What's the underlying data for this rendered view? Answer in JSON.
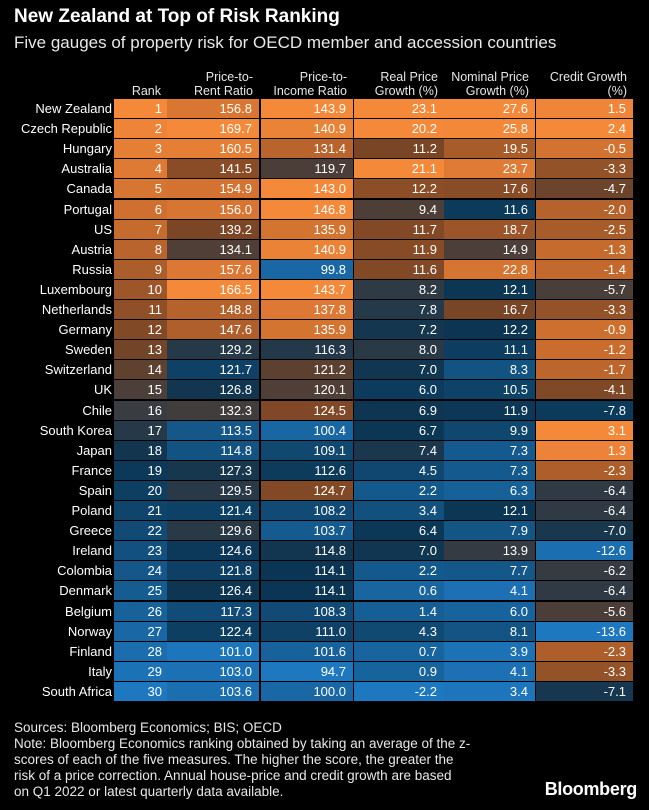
{
  "title": "New Zealand at Top of Risk Ranking",
  "subtitle": "Five gauges of property risk for OECD member and accession countries",
  "footer": {
    "sources": "Sources: Bloomberg Economics; BIS; OECD",
    "note_lines": [
      "Note: Bloomberg Economics ranking obtained by taking an average of the z-",
      "scores of each of the five measures. The higher the score, the greater the",
      "risk of a price correction. Annual house-price and credit growth are based",
      "on Q1 2022 or latest quarterly data available."
    ]
  },
  "brand": "Bloomberg",
  "colors": {
    "background": "#000000",
    "orange_high": "#f5893a",
    "orange_mid": "#c96c2e",
    "brown": "#7a4525",
    "dark_blue": "#0b3553",
    "blue_mid": "#14588a",
    "blue_high": "#1e78c0"
  },
  "chart_data": {
    "type": "table",
    "title": "New Zealand at Top of Risk Ranking",
    "subtitle": "Five gauges of property risk for OECD member and accession countries",
    "columns": [
      "Rank",
      "Price-to-\nRent Ratio",
      "Price-to-\nIncome Ratio",
      "Real Price\nGrowth (%)",
      "Nominal Price\nGrowth (%)",
      "Credit Growth\n(%)"
    ],
    "rows": [
      {
        "country": "New Zealand",
        "rank": 1,
        "price_to_rent": "156.8",
        "price_to_income": "143.9",
        "real_price_growth": "23.1",
        "nominal_price_growth": "27.6",
        "credit_growth": "1.5"
      },
      {
        "country": "Czech Republic",
        "rank": 2,
        "price_to_rent": "169.7",
        "price_to_income": "140.9",
        "real_price_growth": "20.2",
        "nominal_price_growth": "25.8",
        "credit_growth": "2.4"
      },
      {
        "country": "Hungary",
        "rank": 3,
        "price_to_rent": "160.5",
        "price_to_income": "131.4",
        "real_price_growth": "11.2",
        "nominal_price_growth": "19.5",
        "credit_growth": "-0.5"
      },
      {
        "country": "Australia",
        "rank": 4,
        "price_to_rent": "141.5",
        "price_to_income": "119.7",
        "real_price_growth": "21.1",
        "nominal_price_growth": "23.7",
        "credit_growth": "-3.3"
      },
      {
        "country": "Canada",
        "rank": 5,
        "price_to_rent": "154.9",
        "price_to_income": "143.0",
        "real_price_growth": "12.2",
        "nominal_price_growth": "17.6",
        "credit_growth": "-4.7"
      },
      {
        "country": "Portugal",
        "rank": 6,
        "price_to_rent": "156.0",
        "price_to_income": "146.8",
        "real_price_growth": "9.4",
        "nominal_price_growth": "11.6",
        "credit_growth": "-2.0"
      },
      {
        "country": "US",
        "rank": 7,
        "price_to_rent": "139.2",
        "price_to_income": "135.9",
        "real_price_growth": "11.7",
        "nominal_price_growth": "18.7",
        "credit_growth": "-2.5"
      },
      {
        "country": "Austria",
        "rank": 8,
        "price_to_rent": "134.1",
        "price_to_income": "140.9",
        "real_price_growth": "11.9",
        "nominal_price_growth": "14.9",
        "credit_growth": "-1.3"
      },
      {
        "country": "Russia",
        "rank": 9,
        "price_to_rent": "157.6",
        "price_to_income": "99.8",
        "real_price_growth": "11.6",
        "nominal_price_growth": "22.8",
        "credit_growth": "-1.4"
      },
      {
        "country": "Luxembourg",
        "rank": 10,
        "price_to_rent": "166.5",
        "price_to_income": "143.7",
        "real_price_growth": "8.2",
        "nominal_price_growth": "12.1",
        "credit_growth": "-5.7"
      },
      {
        "country": "Netherlands",
        "rank": 11,
        "price_to_rent": "148.8",
        "price_to_income": "137.8",
        "real_price_growth": "7.8",
        "nominal_price_growth": "16.7",
        "credit_growth": "-3.3"
      },
      {
        "country": "Germany",
        "rank": 12,
        "price_to_rent": "147.6",
        "price_to_income": "135.9",
        "real_price_growth": "7.2",
        "nominal_price_growth": "12.2",
        "credit_growth": "-0.9"
      },
      {
        "country": "Sweden",
        "rank": 13,
        "price_to_rent": "129.2",
        "price_to_income": "116.3",
        "real_price_growth": "8.0",
        "nominal_price_growth": "11.1",
        "credit_growth": "-1.2"
      },
      {
        "country": "Switzerland",
        "rank": 14,
        "price_to_rent": "121.7",
        "price_to_income": "121.2",
        "real_price_growth": "7.0",
        "nominal_price_growth": "8.3",
        "credit_growth": "-1.7"
      },
      {
        "country": "UK",
        "rank": 15,
        "price_to_rent": "126.8",
        "price_to_income": "120.1",
        "real_price_growth": "6.0",
        "nominal_price_growth": "10.5",
        "credit_growth": "-4.1"
      },
      {
        "country": "Chile",
        "rank": 16,
        "price_to_rent": "132.3",
        "price_to_income": "124.5",
        "real_price_growth": "6.9",
        "nominal_price_growth": "11.9",
        "credit_growth": "-7.8"
      },
      {
        "country": "South Korea",
        "rank": 17,
        "price_to_rent": "113.5",
        "price_to_income": "100.4",
        "real_price_growth": "6.7",
        "nominal_price_growth": "9.9",
        "credit_growth": "3.1"
      },
      {
        "country": "Japan",
        "rank": 18,
        "price_to_rent": "114.8",
        "price_to_income": "109.1",
        "real_price_growth": "7.4",
        "nominal_price_growth": "7.3",
        "credit_growth": "1.3"
      },
      {
        "country": "France",
        "rank": 19,
        "price_to_rent": "127.3",
        "price_to_income": "112.6",
        "real_price_growth": "4.5",
        "nominal_price_growth": "7.3",
        "credit_growth": "-2.3"
      },
      {
        "country": "Spain",
        "rank": 20,
        "price_to_rent": "129.5",
        "price_to_income": "124.7",
        "real_price_growth": "2.2",
        "nominal_price_growth": "6.3",
        "credit_growth": "-6.4"
      },
      {
        "country": "Poland",
        "rank": 21,
        "price_to_rent": "121.4",
        "price_to_income": "108.2",
        "real_price_growth": "3.4",
        "nominal_price_growth": "12.1",
        "credit_growth": "-6.4"
      },
      {
        "country": "Greece",
        "rank": 22,
        "price_to_rent": "129.6",
        "price_to_income": "103.7",
        "real_price_growth": "6.4",
        "nominal_price_growth": "7.9",
        "credit_growth": "-7.0"
      },
      {
        "country": "Ireland",
        "rank": 23,
        "price_to_rent": "124.6",
        "price_to_income": "114.8",
        "real_price_growth": "7.0",
        "nominal_price_growth": "13.9",
        "credit_growth": "-12.6"
      },
      {
        "country": "Colombia",
        "rank": 24,
        "price_to_rent": "121.8",
        "price_to_income": "114.1",
        "real_price_growth": "2.2",
        "nominal_price_growth": "7.7",
        "credit_growth": "-6.2"
      },
      {
        "country": "Denmark",
        "rank": 25,
        "price_to_rent": "126.4",
        "price_to_income": "114.1",
        "real_price_growth": "0.6",
        "nominal_price_growth": "4.1",
        "credit_growth": "-6.4"
      },
      {
        "country": "Belgium",
        "rank": 26,
        "price_to_rent": "117.3",
        "price_to_income": "108.3",
        "real_price_growth": "1.4",
        "nominal_price_growth": "6.0",
        "credit_growth": "-5.6"
      },
      {
        "country": "Norway",
        "rank": 27,
        "price_to_rent": "122.4",
        "price_to_income": "111.0",
        "real_price_growth": "4.3",
        "nominal_price_growth": "8.1",
        "credit_growth": "-13.6"
      },
      {
        "country": "Finland",
        "rank": 28,
        "price_to_rent": "101.0",
        "price_to_income": "101.6",
        "real_price_growth": "0.7",
        "nominal_price_growth": "3.9",
        "credit_growth": "-2.3"
      },
      {
        "country": "Italy",
        "rank": 29,
        "price_to_rent": "103.0",
        "price_to_income": "94.7",
        "real_price_growth": "0.9",
        "nominal_price_growth": "4.1",
        "credit_growth": "-3.3"
      },
      {
        "country": "South Africa",
        "rank": 30,
        "price_to_rent": "103.6",
        "price_to_income": "100.0",
        "real_price_growth": "-2.2",
        "nominal_price_growth": "3.4",
        "credit_growth": "-7.1"
      }
    ]
  }
}
